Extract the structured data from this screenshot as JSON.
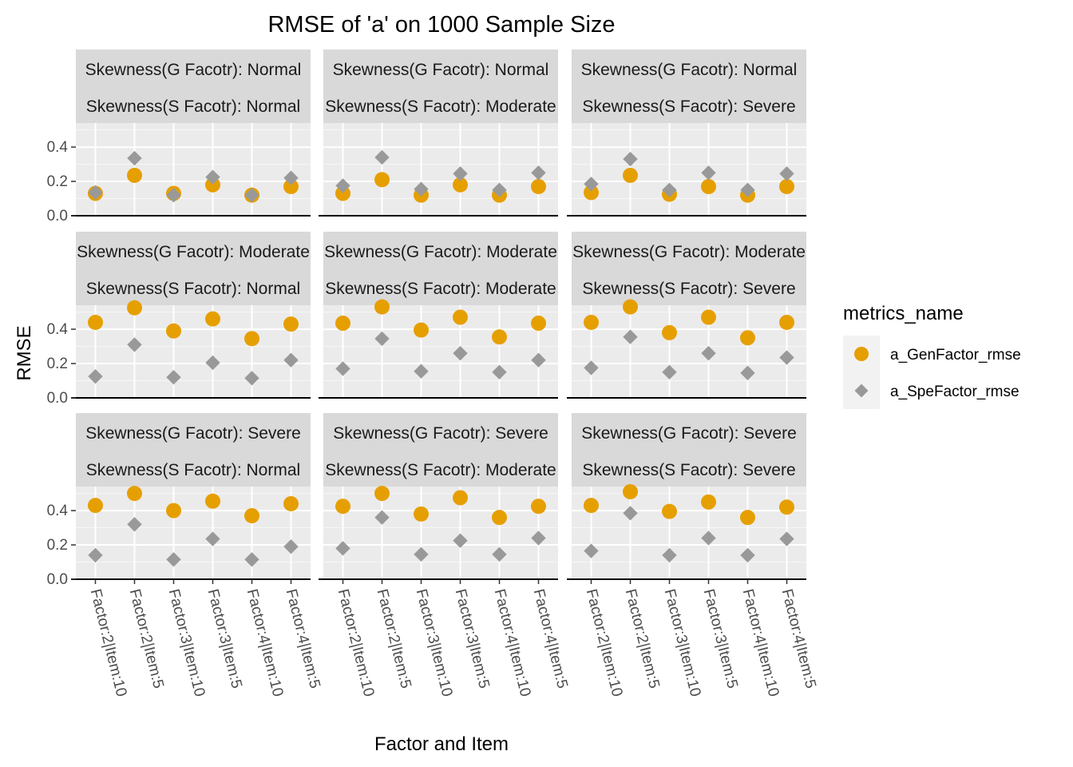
{
  "chart_data": {
    "type": "scatter",
    "title": "RMSE of 'a' on 1000 Sample Size",
    "xlabel": "Factor and Item",
    "ylabel": "RMSE",
    "categories": [
      "Factor:2|Item:10",
      "Factor:2|Item:5",
      "Factor:3|Item:10",
      "Factor:3|Item:5",
      "Factor:4|Item:10",
      "Factor:4|Item:5"
    ],
    "yticks": [
      "0.0",
      "0.2",
      "0.4"
    ],
    "grid": true,
    "legend": {
      "title": "metrics_name",
      "position": "right",
      "entries": [
        "a_GenFactor_rmse",
        "a_SpeFactor_rmse"
      ]
    },
    "colors": {
      "a_GenFactor_rmse": "#E69F00",
      "a_SpeFactor_rmse": "#999999"
    },
    "markers": {
      "a_GenFactor_rmse": "circle",
      "a_SpeFactor_rmse": "diamond"
    },
    "facets": [
      {
        "row": 0,
        "col": 0,
        "strip_top": "Skewness(G Facotr): Normal",
        "strip_bottom": "Skewness(S Facotr): Normal",
        "ylim": [
          0,
          0.54
        ],
        "series": [
          {
            "name": "a_GenFactor_rmse",
            "values": [
              0.13,
              0.235,
              0.13,
              0.18,
              0.12,
              0.17
            ]
          },
          {
            "name": "a_SpeFactor_rmse",
            "values": [
              0.135,
              0.335,
              0.12,
              0.225,
              0.12,
              0.22
            ]
          }
        ]
      },
      {
        "row": 0,
        "col": 1,
        "strip_top": "Skewness(G Facotr): Normal",
        "strip_bottom": "Skewness(S Facotr): Moderate",
        "ylim": [
          0,
          0.54
        ],
        "series": [
          {
            "name": "a_GenFactor_rmse",
            "values": [
              0.13,
              0.21,
              0.12,
              0.18,
              0.12,
              0.17
            ]
          },
          {
            "name": "a_SpeFactor_rmse",
            "values": [
              0.175,
              0.34,
              0.155,
              0.245,
              0.15,
              0.25
            ]
          }
        ]
      },
      {
        "row": 0,
        "col": 2,
        "strip_top": "Skewness(G Facotr): Normal",
        "strip_bottom": "Skewness(S Facotr): Severe",
        "ylim": [
          0,
          0.54
        ],
        "series": [
          {
            "name": "a_GenFactor_rmse",
            "values": [
              0.135,
              0.235,
              0.125,
              0.17,
              0.12,
              0.17
            ]
          },
          {
            "name": "a_SpeFactor_rmse",
            "values": [
              0.185,
              0.33,
              0.15,
              0.25,
              0.15,
              0.245
            ]
          }
        ]
      },
      {
        "row": 1,
        "col": 0,
        "strip_top": "Skewness(G Facotr): Moderate",
        "strip_bottom": "Skewness(S Facotr): Normal",
        "ylim": [
          0,
          0.54
        ],
        "series": [
          {
            "name": "a_GenFactor_rmse",
            "values": [
              0.44,
              0.525,
              0.39,
              0.46,
              0.345,
              0.43
            ]
          },
          {
            "name": "a_SpeFactor_rmse",
            "values": [
              0.125,
              0.31,
              0.12,
              0.205,
              0.115,
              0.22
            ]
          }
        ]
      },
      {
        "row": 1,
        "col": 1,
        "strip_top": "Skewness(G Facotr): Moderate",
        "strip_bottom": "Skewness(S Facotr): Moderate",
        "ylim": [
          0,
          0.54
        ],
        "series": [
          {
            "name": "a_GenFactor_rmse",
            "values": [
              0.435,
              0.53,
              0.395,
              0.47,
              0.355,
              0.435
            ]
          },
          {
            "name": "a_SpeFactor_rmse",
            "values": [
              0.17,
              0.345,
              0.155,
              0.26,
              0.15,
              0.22
            ]
          }
        ]
      },
      {
        "row": 1,
        "col": 2,
        "strip_top": "Skewness(G Facotr): Moderate",
        "strip_bottom": "Skewness(S Facotr): Severe",
        "ylim": [
          0,
          0.54
        ],
        "series": [
          {
            "name": "a_GenFactor_rmse",
            "values": [
              0.44,
              0.53,
              0.38,
              0.47,
              0.35,
              0.44
            ]
          },
          {
            "name": "a_SpeFactor_rmse",
            "values": [
              0.175,
              0.355,
              0.15,
              0.26,
              0.145,
              0.235
            ]
          }
        ]
      },
      {
        "row": 2,
        "col": 0,
        "strip_top": "Skewness(G Facotr): Severe",
        "strip_bottom": "Skewness(S Facotr): Normal",
        "ylim": [
          0,
          0.54
        ],
        "series": [
          {
            "name": "a_GenFactor_rmse",
            "values": [
              0.43,
              0.5,
              0.4,
              0.455,
              0.37,
              0.44
            ]
          },
          {
            "name": "a_SpeFactor_rmse",
            "values": [
              0.14,
              0.32,
              0.115,
              0.235,
              0.115,
              0.19
            ]
          }
        ]
      },
      {
        "row": 2,
        "col": 1,
        "strip_top": "Skewness(G Facotr): Severe",
        "strip_bottom": "Skewness(S Facotr): Moderate",
        "ylim": [
          0,
          0.54
        ],
        "series": [
          {
            "name": "a_GenFactor_rmse",
            "values": [
              0.425,
              0.5,
              0.38,
              0.475,
              0.36,
              0.425
            ]
          },
          {
            "name": "a_SpeFactor_rmse",
            "values": [
              0.18,
              0.36,
              0.145,
              0.225,
              0.145,
              0.24
            ]
          }
        ]
      },
      {
        "row": 2,
        "col": 2,
        "strip_top": "Skewness(G Facotr): Severe",
        "strip_bottom": "Skewness(S Facotr): Severe",
        "ylim": [
          0,
          0.54
        ],
        "series": [
          {
            "name": "a_GenFactor_rmse",
            "values": [
              0.43,
              0.51,
              0.395,
              0.45,
              0.36,
              0.42
            ]
          },
          {
            "name": "a_SpeFactor_rmse",
            "values": [
              0.165,
              0.385,
              0.14,
              0.24,
              0.14,
              0.235
            ]
          }
        ]
      }
    ]
  }
}
